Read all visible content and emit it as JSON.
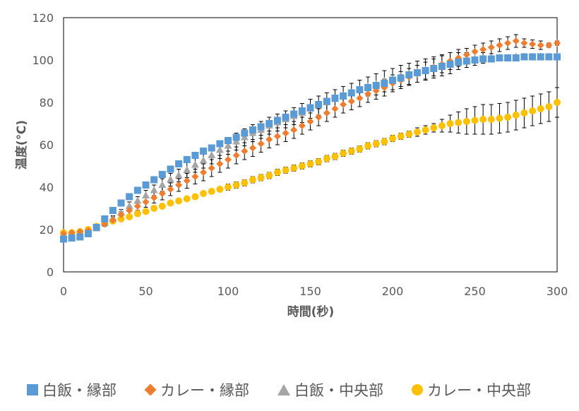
{
  "chart_data": {
    "type": "scatter",
    "title": "",
    "xlabel": "時間(秒)",
    "ylabel": "温度(℃)",
    "xlim": [
      0,
      300
    ],
    "ylim": [
      0,
      120
    ],
    "xticks": [
      0,
      50,
      100,
      150,
      200,
      250,
      300
    ],
    "yticks": [
      0,
      20,
      40,
      60,
      80,
      100,
      120
    ],
    "grid": false,
    "legend_position": "bottom",
    "x": [
      0,
      5,
      10,
      15,
      20,
      25,
      30,
      35,
      40,
      45,
      50,
      55,
      60,
      65,
      70,
      75,
      80,
      85,
      90,
      95,
      100,
      105,
      110,
      115,
      120,
      125,
      130,
      135,
      140,
      145,
      150,
      155,
      160,
      165,
      170,
      175,
      180,
      185,
      190,
      195,
      200,
      205,
      210,
      215,
      220,
      225,
      230,
      235,
      240,
      245,
      250,
      255,
      260,
      265,
      270,
      275,
      280,
      285,
      290,
      295,
      300
    ],
    "series": [
      {
        "name": "白飯・縁部",
        "color": "#5B9BD5",
        "marker": "square",
        "values": [
          15.5,
          16,
          16.5,
          18,
          21,
          25,
          29,
          32.5,
          35.5,
          38.5,
          41,
          43.5,
          46,
          48.5,
          51,
          53,
          55,
          57,
          58.5,
          60.5,
          62,
          63.5,
          65.5,
          67,
          68.5,
          70,
          71.5,
          73,
          74.5,
          76,
          77.5,
          79,
          80.5,
          82,
          83,
          84.5,
          86,
          87,
          88,
          89,
          90.5,
          91.5,
          93,
          94,
          95,
          96,
          97,
          98,
          99,
          99.5,
          100,
          100.5,
          100.5,
          101,
          101,
          101,
          101.5,
          101.5,
          101.5,
          101.5,
          101.5
        ],
        "errors": [
          0.5,
          0.5,
          0.5,
          0.5,
          0.5,
          0.8,
          1,
          1,
          1,
          1,
          1.2,
          1.2,
          1.2,
          1.5,
          1.5,
          1.5,
          1.5,
          1.5,
          1.5,
          1.5,
          1.5,
          1.5,
          1.5,
          1.5,
          1.5,
          1.5,
          1.5,
          1.5,
          1.5,
          1.5,
          1.5,
          1.5,
          1.5,
          1.5,
          1.5,
          1.5,
          1.5,
          1.5,
          1.5,
          1.5,
          1.5,
          1.5,
          1.5,
          1.5,
          1.5,
          1.5,
          1.5,
          1.5,
          1,
          1,
          1,
          1,
          1,
          1,
          1,
          1,
          1,
          1,
          1,
          1,
          1
        ]
      },
      {
        "name": "カレー・縁部",
        "color": "#ED7D31",
        "marker": "diamond",
        "values": [
          18,
          18.5,
          19,
          19.5,
          21,
          22.5,
          24.5,
          27,
          29,
          31,
          33,
          35,
          37,
          39,
          41,
          43,
          45,
          47,
          49,
          51,
          53,
          55,
          57,
          58.5,
          60.5,
          62.5,
          64,
          65.5,
          67,
          69,
          71,
          73,
          75,
          77,
          79,
          80.5,
          82,
          84,
          85.5,
          87,
          89,
          90.5,
          92,
          93.5,
          95,
          96.5,
          98,
          99.5,
          101,
          102.5,
          104,
          105,
          106,
          107,
          108,
          109,
          108,
          107.5,
          107,
          107,
          108
        ],
        "errors": [
          1,
          1,
          1,
          1,
          1,
          1,
          1.5,
          1.5,
          2,
          2,
          2.5,
          2.5,
          3,
          3,
          3,
          3.5,
          3.5,
          4,
          4,
          4,
          4,
          4,
          4,
          4,
          4,
          4,
          4,
          4,
          4,
          4,
          4,
          4,
          4,
          4,
          4,
          4,
          4,
          4,
          4,
          4,
          4,
          4,
          4,
          4,
          4,
          4,
          4,
          4,
          4,
          3,
          3,
          3,
          3,
          3,
          3,
          3,
          2,
          2,
          2,
          1,
          1
        ]
      },
      {
        "name": "白飯・中央部",
        "color": "#A5A5A5",
        "marker": "triangle",
        "values": [
          17,
          17,
          17,
          18,
          20.5,
          23,
          25,
          28,
          31,
          33.5,
          36,
          38.5,
          41,
          43.5,
          45.5,
          48,
          50.5,
          52.5,
          55,
          57.5,
          59.5,
          61.5,
          63.5,
          65.5,
          67,
          69,
          70.5,
          72,
          73.5,
          75,
          77,
          78.5,
          80,
          81.5,
          83,
          84.5,
          86,
          87.5,
          88.5,
          90,
          91,
          92.5,
          93.5,
          94.5,
          95.5,
          96.5,
          97.5,
          98.5,
          99.5,
          100,
          100.5,
          101,
          101,
          101,
          101,
          101.5,
          101.5,
          101.5,
          101.5,
          101.5,
          101.5
        ],
        "errors": [
          0.5,
          0.5,
          0.5,
          0.5,
          1,
          1,
          1.5,
          1.5,
          2,
          2,
          2.5,
          2.5,
          3,
          3,
          3,
          3.5,
          3.5,
          3.5,
          4,
          4,
          4,
          4,
          4,
          4,
          4,
          4,
          4,
          4,
          4,
          4.5,
          4.5,
          4.5,
          4.5,
          4.5,
          4.5,
          4.5,
          4.5,
          4.5,
          5,
          5,
          5,
          5,
          5,
          5,
          5,
          5,
          5,
          5,
          4,
          3.5,
          3,
          2.5,
          2,
          1.5,
          1,
          1,
          1,
          1,
          1,
          1,
          1
        ]
      },
      {
        "name": "カレー・中央部",
        "color": "#FFC000",
        "marker": "circle",
        "values": [
          18.5,
          18.5,
          19,
          20,
          21.5,
          23,
          24,
          25,
          26,
          27.5,
          28.5,
          30,
          31,
          32.5,
          33.5,
          34.5,
          35.5,
          37,
          38,
          39,
          40,
          41,
          42,
          43.5,
          44.5,
          45.5,
          47,
          48,
          49,
          50,
          51,
          52,
          53.5,
          54.5,
          56,
          57,
          58,
          59.5,
          60.5,
          61.5,
          63,
          64,
          65,
          66,
          67,
          68,
          69,
          70,
          70.5,
          71,
          71.5,
          72,
          72,
          72.5,
          73,
          74,
          75,
          76,
          77,
          78,
          80
        ],
        "errors": [
          0.5,
          0.5,
          0.5,
          0.5,
          0.5,
          0.5,
          0.8,
          0.8,
          1,
          1,
          1,
          1,
          1,
          1,
          1,
          1,
          1,
          1,
          1.2,
          1.2,
          1.5,
          1.5,
          1.5,
          1.5,
          1.5,
          1.5,
          1.5,
          1.5,
          1.5,
          1.5,
          1.5,
          1.5,
          1.5,
          1.5,
          1.5,
          1.5,
          1.5,
          1.5,
          1.5,
          1.5,
          1.5,
          1.5,
          1.5,
          2,
          2,
          2,
          3,
          4,
          5,
          6,
          6.5,
          7,
          7,
          7,
          7,
          7,
          7,
          7,
          7,
          7,
          7
        ]
      }
    ]
  }
}
